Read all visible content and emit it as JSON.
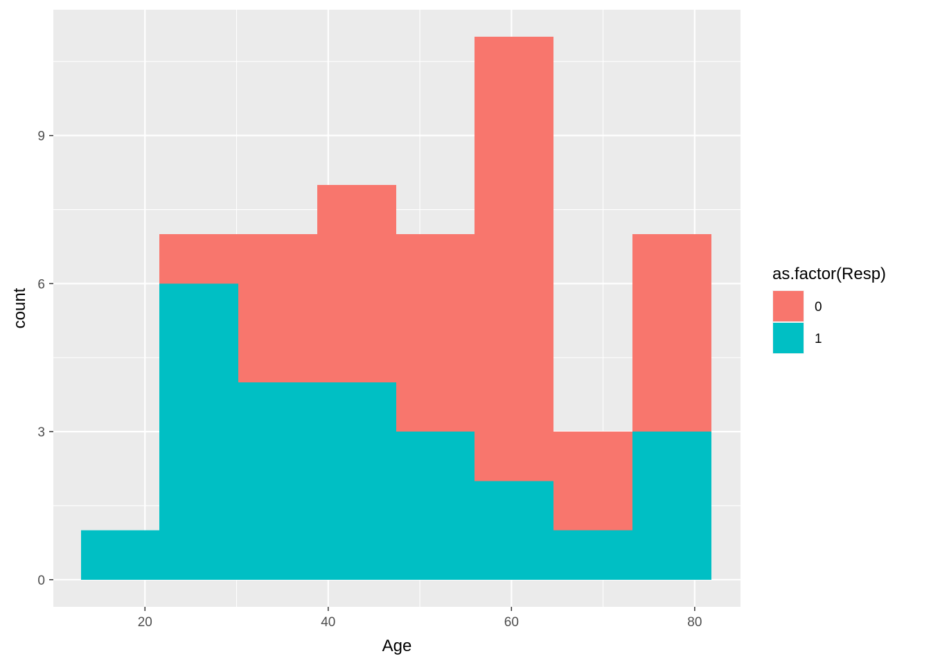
{
  "chart_data": {
    "type": "bar",
    "subtype": "stacked-histogram",
    "xlabel": "Age",
    "ylabel": "count",
    "xlim": [
      10,
      85
    ],
    "ylim": [
      -0.55,
      11.55
    ],
    "x_ticks": [
      20,
      40,
      60,
      80
    ],
    "y_ticks": [
      0,
      3,
      6,
      9
    ],
    "x_tick_labels": [
      "20",
      "40",
      "60",
      "80"
    ],
    "y_tick_labels": [
      "0",
      "3",
      "6",
      "9"
    ],
    "bins": [
      {
        "x0": 13.0,
        "x1": 21.6
      },
      {
        "x0": 21.6,
        "x1": 30.2
      },
      {
        "x0": 30.2,
        "x1": 38.8
      },
      {
        "x0": 38.8,
        "x1": 47.4
      },
      {
        "x0": 47.4,
        "x1": 56.0
      },
      {
        "x0": 56.0,
        "x1": 64.6
      },
      {
        "x0": 64.6,
        "x1": 73.2
      },
      {
        "x0": 73.2,
        "x1": 81.8
      }
    ],
    "series": [
      {
        "name": "1",
        "color": "#00BFC4",
        "values": [
          1,
          6,
          4,
          4,
          3,
          2,
          1,
          3
        ]
      },
      {
        "name": "0",
        "color": "#F8766D",
        "values": [
          0,
          1,
          3,
          4,
          4,
          9,
          2,
          4
        ]
      }
    ],
    "legend": {
      "title": "as.factor(Resp)",
      "position": "right",
      "entries": [
        {
          "label": "0",
          "color": "#F8766D"
        },
        {
          "label": "1",
          "color": "#00BFC4"
        }
      ]
    },
    "grid": true,
    "panel_background": "#EBEBEB"
  }
}
